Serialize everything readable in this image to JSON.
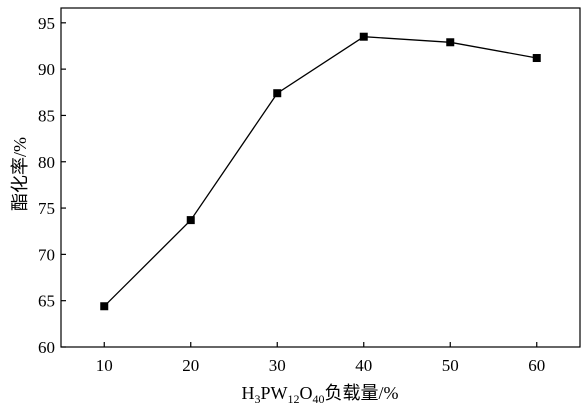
{
  "chart_data": {
    "type": "line",
    "x": [
      10,
      20,
      30,
      40,
      50,
      60
    ],
    "series": [
      {
        "values": [
          64.4,
          73.7,
          87.4,
          93.5,
          92.9,
          91.2
        ],
        "marker": "square",
        "color": "#000000"
      }
    ],
    "title": "",
    "xlabel": [
      {
        "text": "H",
        "sub": false
      },
      {
        "text": "3",
        "sub": true
      },
      {
        "text": "PW",
        "sub": false
      },
      {
        "text": "12",
        "sub": true
      },
      {
        "text": "O",
        "sub": false
      },
      {
        "text": "40",
        "sub": true
      },
      {
        "text": "负载量/%",
        "sub": false
      }
    ],
    "ylabel": "酯化率/%",
    "xlim": [
      5,
      65
    ],
    "ylim": [
      60,
      96.6
    ],
    "x_ticks": [
      10,
      20,
      30,
      40,
      50,
      60
    ],
    "y_ticks": [
      60,
      65,
      70,
      75,
      80,
      85,
      90,
      95
    ],
    "grid": false
  }
}
